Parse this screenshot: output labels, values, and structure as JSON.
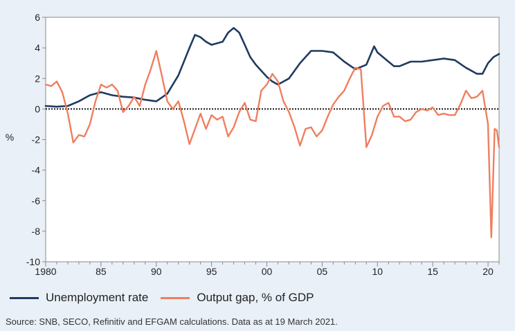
{
  "chart_data": {
    "type": "line",
    "ylabel": "%",
    "ylim": [
      -10,
      6
    ],
    "xlim": [
      1980,
      2021
    ],
    "y_ticks": [
      "6",
      "4",
      "2",
      "0",
      "-2",
      "-4",
      "-6",
      "-8",
      "-10"
    ],
    "x_ticks": [
      {
        "value": 1980,
        "label": "1980"
      },
      {
        "value": 1985,
        "label": "85"
      },
      {
        "value": 1990,
        "label": "90"
      },
      {
        "value": 1995,
        "label": "95"
      },
      {
        "value": 2000,
        "label": "00"
      },
      {
        "value": 2005,
        "label": "05"
      },
      {
        "value": 2010,
        "label": "10"
      },
      {
        "value": 2015,
        "label": "15"
      },
      {
        "value": 2020,
        "label": "20"
      }
    ],
    "zero_line": true,
    "series": [
      {
        "name": "Unemployment rate",
        "color": "#1f3a5f",
        "points": [
          [
            1980,
            0.2
          ],
          [
            1981,
            0.15
          ],
          [
            1982,
            0.2
          ],
          [
            1983,
            0.5
          ],
          [
            1984,
            0.9
          ],
          [
            1985,
            1.1
          ],
          [
            1986,
            0.9
          ],
          [
            1987,
            0.8
          ],
          [
            1988,
            0.75
          ],
          [
            1989,
            0.6
          ],
          [
            1990,
            0.5
          ],
          [
            1991,
            1.0
          ],
          [
            1992,
            2.2
          ],
          [
            1993,
            4.0
          ],
          [
            1993.5,
            4.85
          ],
          [
            1994,
            4.7
          ],
          [
            1994.5,
            4.4
          ],
          [
            1995,
            4.2
          ],
          [
            1996,
            4.4
          ],
          [
            1996.5,
            5.0
          ],
          [
            1997,
            5.3
          ],
          [
            1997.5,
            5.0
          ],
          [
            1998,
            4.2
          ],
          [
            1998.5,
            3.4
          ],
          [
            1999,
            2.9
          ],
          [
            2000,
            2.1
          ],
          [
            2000.5,
            1.8
          ],
          [
            2001,
            1.6
          ],
          [
            2002,
            2.0
          ],
          [
            2003,
            3.0
          ],
          [
            2004,
            3.8
          ],
          [
            2005,
            3.8
          ],
          [
            2006,
            3.7
          ],
          [
            2007,
            3.1
          ],
          [
            2008,
            2.6
          ],
          [
            2009,
            2.9
          ],
          [
            2009.7,
            4.1
          ],
          [
            2010,
            3.7
          ],
          [
            2011,
            3.1
          ],
          [
            2011.5,
            2.8
          ],
          [
            2012,
            2.8
          ],
          [
            2013,
            3.1
          ],
          [
            2014,
            3.1
          ],
          [
            2015,
            3.2
          ],
          [
            2016,
            3.3
          ],
          [
            2017,
            3.2
          ],
          [
            2018,
            2.7
          ],
          [
            2018.5,
            2.5
          ],
          [
            2019,
            2.3
          ],
          [
            2019.5,
            2.3
          ],
          [
            2020,
            3.0
          ],
          [
            2020.5,
            3.4
          ],
          [
            2021,
            3.6
          ]
        ]
      },
      {
        "name": "Output gap, % of GDP",
        "color": "#f07e5e",
        "points": [
          [
            1980,
            1.6
          ],
          [
            1980.5,
            1.5
          ],
          [
            1981,
            1.8
          ],
          [
            1981.5,
            1.1
          ],
          [
            1982,
            -0.3
          ],
          [
            1982.5,
            -2.2
          ],
          [
            1983,
            -1.7
          ],
          [
            1983.5,
            -1.8
          ],
          [
            1984,
            -1.0
          ],
          [
            1984.5,
            0.5
          ],
          [
            1985,
            1.6
          ],
          [
            1985.5,
            1.4
          ],
          [
            1986,
            1.6
          ],
          [
            1986.5,
            1.2
          ],
          [
            1987,
            -0.2
          ],
          [
            1987.5,
            0.2
          ],
          [
            1988,
            0.8
          ],
          [
            1988.5,
            0.2
          ],
          [
            1989,
            1.6
          ],
          [
            1989.5,
            2.6
          ],
          [
            1990,
            3.8
          ],
          [
            1990.5,
            2.2
          ],
          [
            1991,
            0.5
          ],
          [
            1991.5,
            0.0
          ],
          [
            1992,
            0.5
          ],
          [
            1992.5,
            -0.8
          ],
          [
            1993,
            -2.3
          ],
          [
            1993.5,
            -1.3
          ],
          [
            1994,
            -0.3
          ],
          [
            1994.5,
            -1.3
          ],
          [
            1995,
            -0.4
          ],
          [
            1995.5,
            -0.7
          ],
          [
            1996,
            -0.5
          ],
          [
            1996.5,
            -1.8
          ],
          [
            1997,
            -1.2
          ],
          [
            1997.5,
            -0.2
          ],
          [
            1998,
            0.4
          ],
          [
            1998.5,
            -0.7
          ],
          [
            1999,
            -0.8
          ],
          [
            1999.5,
            1.2
          ],
          [
            2000,
            1.6
          ],
          [
            2000.5,
            2.3
          ],
          [
            2001,
            1.8
          ],
          [
            2001.5,
            0.5
          ],
          [
            2002,
            -0.2
          ],
          [
            2002.5,
            -1.2
          ],
          [
            2003,
            -2.4
          ],
          [
            2003.5,
            -1.3
          ],
          [
            2004,
            -1.2
          ],
          [
            2004.5,
            -1.8
          ],
          [
            2005,
            -1.4
          ],
          [
            2005.5,
            -0.5
          ],
          [
            2006,
            0.3
          ],
          [
            2006.5,
            0.8
          ],
          [
            2007,
            1.2
          ],
          [
            2007.5,
            2.0
          ],
          [
            2008,
            2.7
          ],
          [
            2008.5,
            2.6
          ],
          [
            2009,
            -2.5
          ],
          [
            2009.5,
            -1.7
          ],
          [
            2010,
            -0.5
          ],
          [
            2010.5,
            0.2
          ],
          [
            2011,
            0.4
          ],
          [
            2011.5,
            -0.5
          ],
          [
            2012,
            -0.5
          ],
          [
            2012.5,
            -0.8
          ],
          [
            2013,
            -0.7
          ],
          [
            2013.5,
            -0.2
          ],
          [
            2014,
            0.0
          ],
          [
            2014.5,
            -0.1
          ],
          [
            2015,
            0.1
          ],
          [
            2015.5,
            -0.4
          ],
          [
            2016,
            -0.3
          ],
          [
            2016.5,
            -0.4
          ],
          [
            2017,
            -0.4
          ],
          [
            2017.5,
            0.3
          ],
          [
            2018,
            1.2
          ],
          [
            2018.5,
            0.7
          ],
          [
            2019,
            0.8
          ],
          [
            2019.5,
            1.2
          ],
          [
            2020,
            -1.0
          ],
          [
            2020.3,
            -8.4
          ],
          [
            2020.6,
            -1.3
          ],
          [
            2020.8,
            -1.4
          ],
          [
            2021,
            -2.5
          ]
        ]
      }
    ],
    "source": "Source: SNB, SECO, Refinitiv and EFGAM calculations. Data as at 19 March 2021."
  },
  "legend": {
    "unemployment_label": "Unemployment rate",
    "output_gap_label": "Output gap, % of GDP"
  }
}
